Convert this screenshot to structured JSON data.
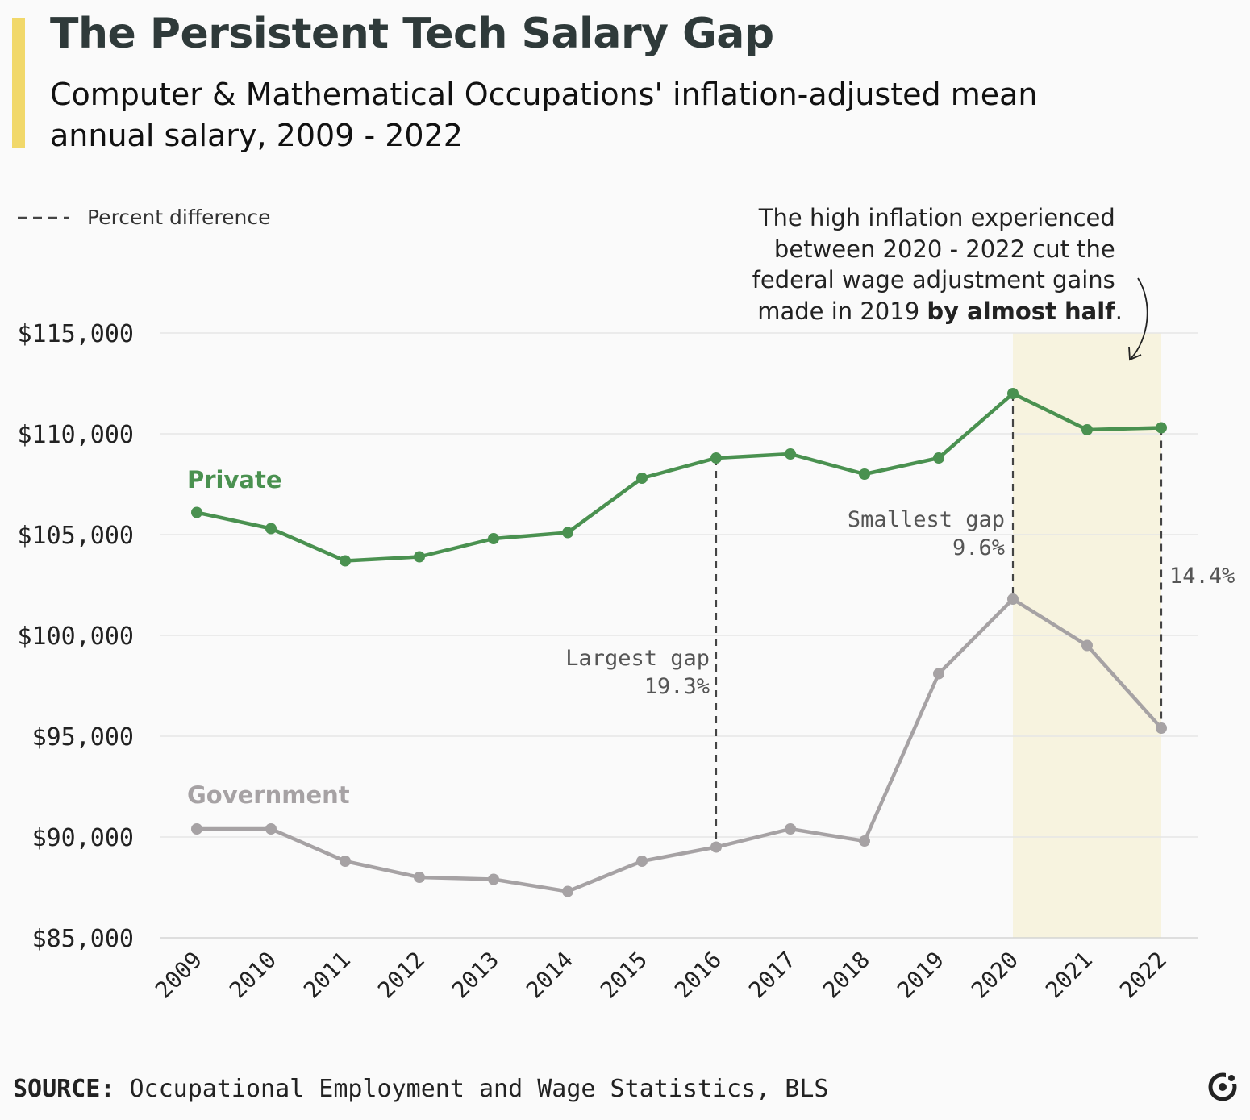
{
  "header": {
    "title": "The Persistent Tech Salary Gap",
    "subtitle": "Computer & Mathematical Occupations' inflation-adjusted mean annual salary, 2009 - 2022"
  },
  "legend": {
    "label": "Percent difference"
  },
  "source": {
    "label": "SOURCE:",
    "text": "Occupational Employment and Wage Statistics, BLS"
  },
  "brand": {
    "icon": "brand-logo-icon"
  },
  "chart_data": {
    "type": "line",
    "x": [
      2009,
      2010,
      2011,
      2012,
      2013,
      2014,
      2015,
      2016,
      2017,
      2018,
      2019,
      2020,
      2021,
      2022
    ],
    "x_tick_labels": [
      "2009",
      "2010",
      "2011",
      "2012",
      "2013",
      "2014",
      "2015",
      "2016",
      "2017",
      "2018",
      "2019",
      "2020",
      "2021",
      "2022"
    ],
    "ylim": [
      85000,
      115000
    ],
    "yticks": [
      85000,
      90000,
      95000,
      100000,
      105000,
      110000,
      115000
    ],
    "ytick_labels": [
      "$85,000",
      "$90,000",
      "$95,000",
      "$100,000",
      "$105,000",
      "$110,000",
      "$115,000"
    ],
    "grid": true,
    "legend_position": "top-left",
    "series": [
      {
        "name": "Private",
        "color": "#4a9150",
        "values": [
          106100,
          105300,
          103700,
          103900,
          104800,
          105100,
          107800,
          108800,
          109000,
          108000,
          108800,
          112000,
          110200,
          110300
        ]
      },
      {
        "name": "Government",
        "color": "#a6a2a4",
        "values": [
          90400,
          90400,
          88800,
          88000,
          87900,
          87300,
          88800,
          89500,
          90400,
          89800,
          98100,
          101800,
          99500,
          95400
        ]
      }
    ],
    "highlight": {
      "from": 2020,
      "to": 2022,
      "color": "#f7f3df"
    },
    "gaps": [
      {
        "x": 2016,
        "label": "Largest gap",
        "value": "19.3%"
      },
      {
        "x": 2020,
        "label": "Smallest gap",
        "value": "9.6%"
      },
      {
        "x": 2022,
        "label": "",
        "value": "14.4%"
      }
    ],
    "annotation": {
      "lines": [
        "The high inflation experienced",
        "between 2020 - 2022 cut the",
        "federal wage adjustment gains"
      ],
      "last_prefix": "made in 2019 ",
      "last_bold": "by almost half",
      "last_suffix": "."
    }
  }
}
